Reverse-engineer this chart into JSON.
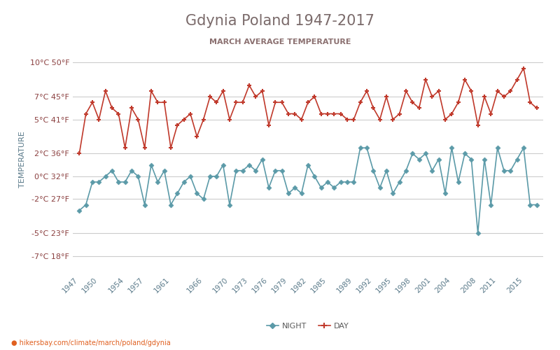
{
  "title": "Gdynia Poland 1947-2017",
  "subtitle": "MARCH AVERAGE TEMPERATURE",
  "ylabel": "TEMPERATURE",
  "url": "hikersbay.com/climate/march/poland/gdynia",
  "title_color": "#7a6a6a",
  "subtitle_color": "#8b7070",
  "background_color": "#ffffff",
  "grid_color": "#cccccc",
  "day_color": "#c0392b",
  "night_color": "#5b9aa8",
  "years": [
    1947,
    1948,
    1949,
    1950,
    1951,
    1952,
    1953,
    1954,
    1955,
    1956,
    1957,
    1958,
    1959,
    1960,
    1961,
    1962,
    1963,
    1964,
    1965,
    1966,
    1967,
    1968,
    1969,
    1970,
    1971,
    1972,
    1973,
    1974,
    1975,
    1976,
    1977,
    1978,
    1979,
    1980,
    1981,
    1982,
    1983,
    1984,
    1985,
    1986,
    1987,
    1988,
    1989,
    1990,
    1991,
    1992,
    1993,
    1994,
    1995,
    1996,
    1997,
    1998,
    1999,
    2000,
    2001,
    2002,
    2003,
    2004,
    2005,
    2006,
    2007,
    2008,
    2009,
    2010,
    2011,
    2012,
    2013,
    2014,
    2015,
    2016,
    2017
  ],
  "day_temps": [
    2.0,
    5.5,
    6.5,
    5.0,
    7.5,
    6.0,
    5.5,
    2.5,
    6.0,
    5.0,
    2.5,
    7.5,
    6.5,
    6.5,
    2.5,
    4.5,
    5.0,
    5.5,
    3.5,
    5.0,
    7.0,
    6.5,
    7.5,
    5.0,
    6.5,
    6.5,
    8.0,
    7.0,
    7.5,
    4.5,
    6.5,
    6.5,
    5.5,
    5.5,
    5.0,
    6.5,
    7.0,
    5.5,
    5.5,
    5.5,
    5.5,
    5.0,
    5.0,
    6.5,
    7.5,
    6.0,
    5.0,
    7.0,
    5.0,
    5.5,
    7.5,
    6.5,
    6.0,
    8.5,
    7.0,
    7.5,
    5.0,
    5.5,
    6.5,
    8.5,
    7.5,
    4.5,
    7.0,
    5.5,
    7.5,
    7.0,
    7.5,
    8.5,
    9.5,
    6.5,
    6.0
  ],
  "night_temps": [
    -3.0,
    -2.5,
    -0.5,
    -0.5,
    0.0,
    0.5,
    -0.5,
    -0.5,
    0.5,
    0.0,
    -2.5,
    1.0,
    -0.5,
    0.5,
    -2.5,
    -1.5,
    -0.5,
    0.0,
    -1.5,
    -2.0,
    0.0,
    0.0,
    1.0,
    -2.5,
    0.5,
    0.5,
    1.0,
    0.5,
    1.5,
    -1.0,
    0.5,
    0.5,
    -1.5,
    -1.0,
    -1.5,
    1.0,
    0.0,
    -1.0,
    -0.5,
    -1.0,
    -0.5,
    -0.5,
    -0.5,
    2.5,
    2.5,
    0.5,
    -1.0,
    0.5,
    -1.5,
    -0.5,
    0.5,
    2.0,
    1.5,
    2.0,
    0.5,
    1.5,
    -1.5,
    2.5,
    -0.5,
    2.0,
    1.5,
    -5.0,
    1.5,
    -2.5,
    2.5,
    0.5,
    0.5,
    1.5,
    2.5,
    -2.5,
    -2.5
  ],
  "xtick_years": [
    1947,
    1950,
    1954,
    1957,
    1961,
    1966,
    1970,
    1973,
    1976,
    1979,
    1982,
    1985,
    1989,
    1992,
    1995,
    1998,
    2001,
    2004,
    2008,
    2011,
    2015
  ],
  "yticks_c": [
    -7,
    -5,
    -2,
    0,
    2,
    5,
    7,
    10
  ],
  "yticks_f": [
    18,
    23,
    27,
    32,
    36,
    41,
    45,
    50
  ],
  "ylim": [
    -8.5,
    11.5
  ],
  "xlim": [
    1946,
    2018
  ]
}
